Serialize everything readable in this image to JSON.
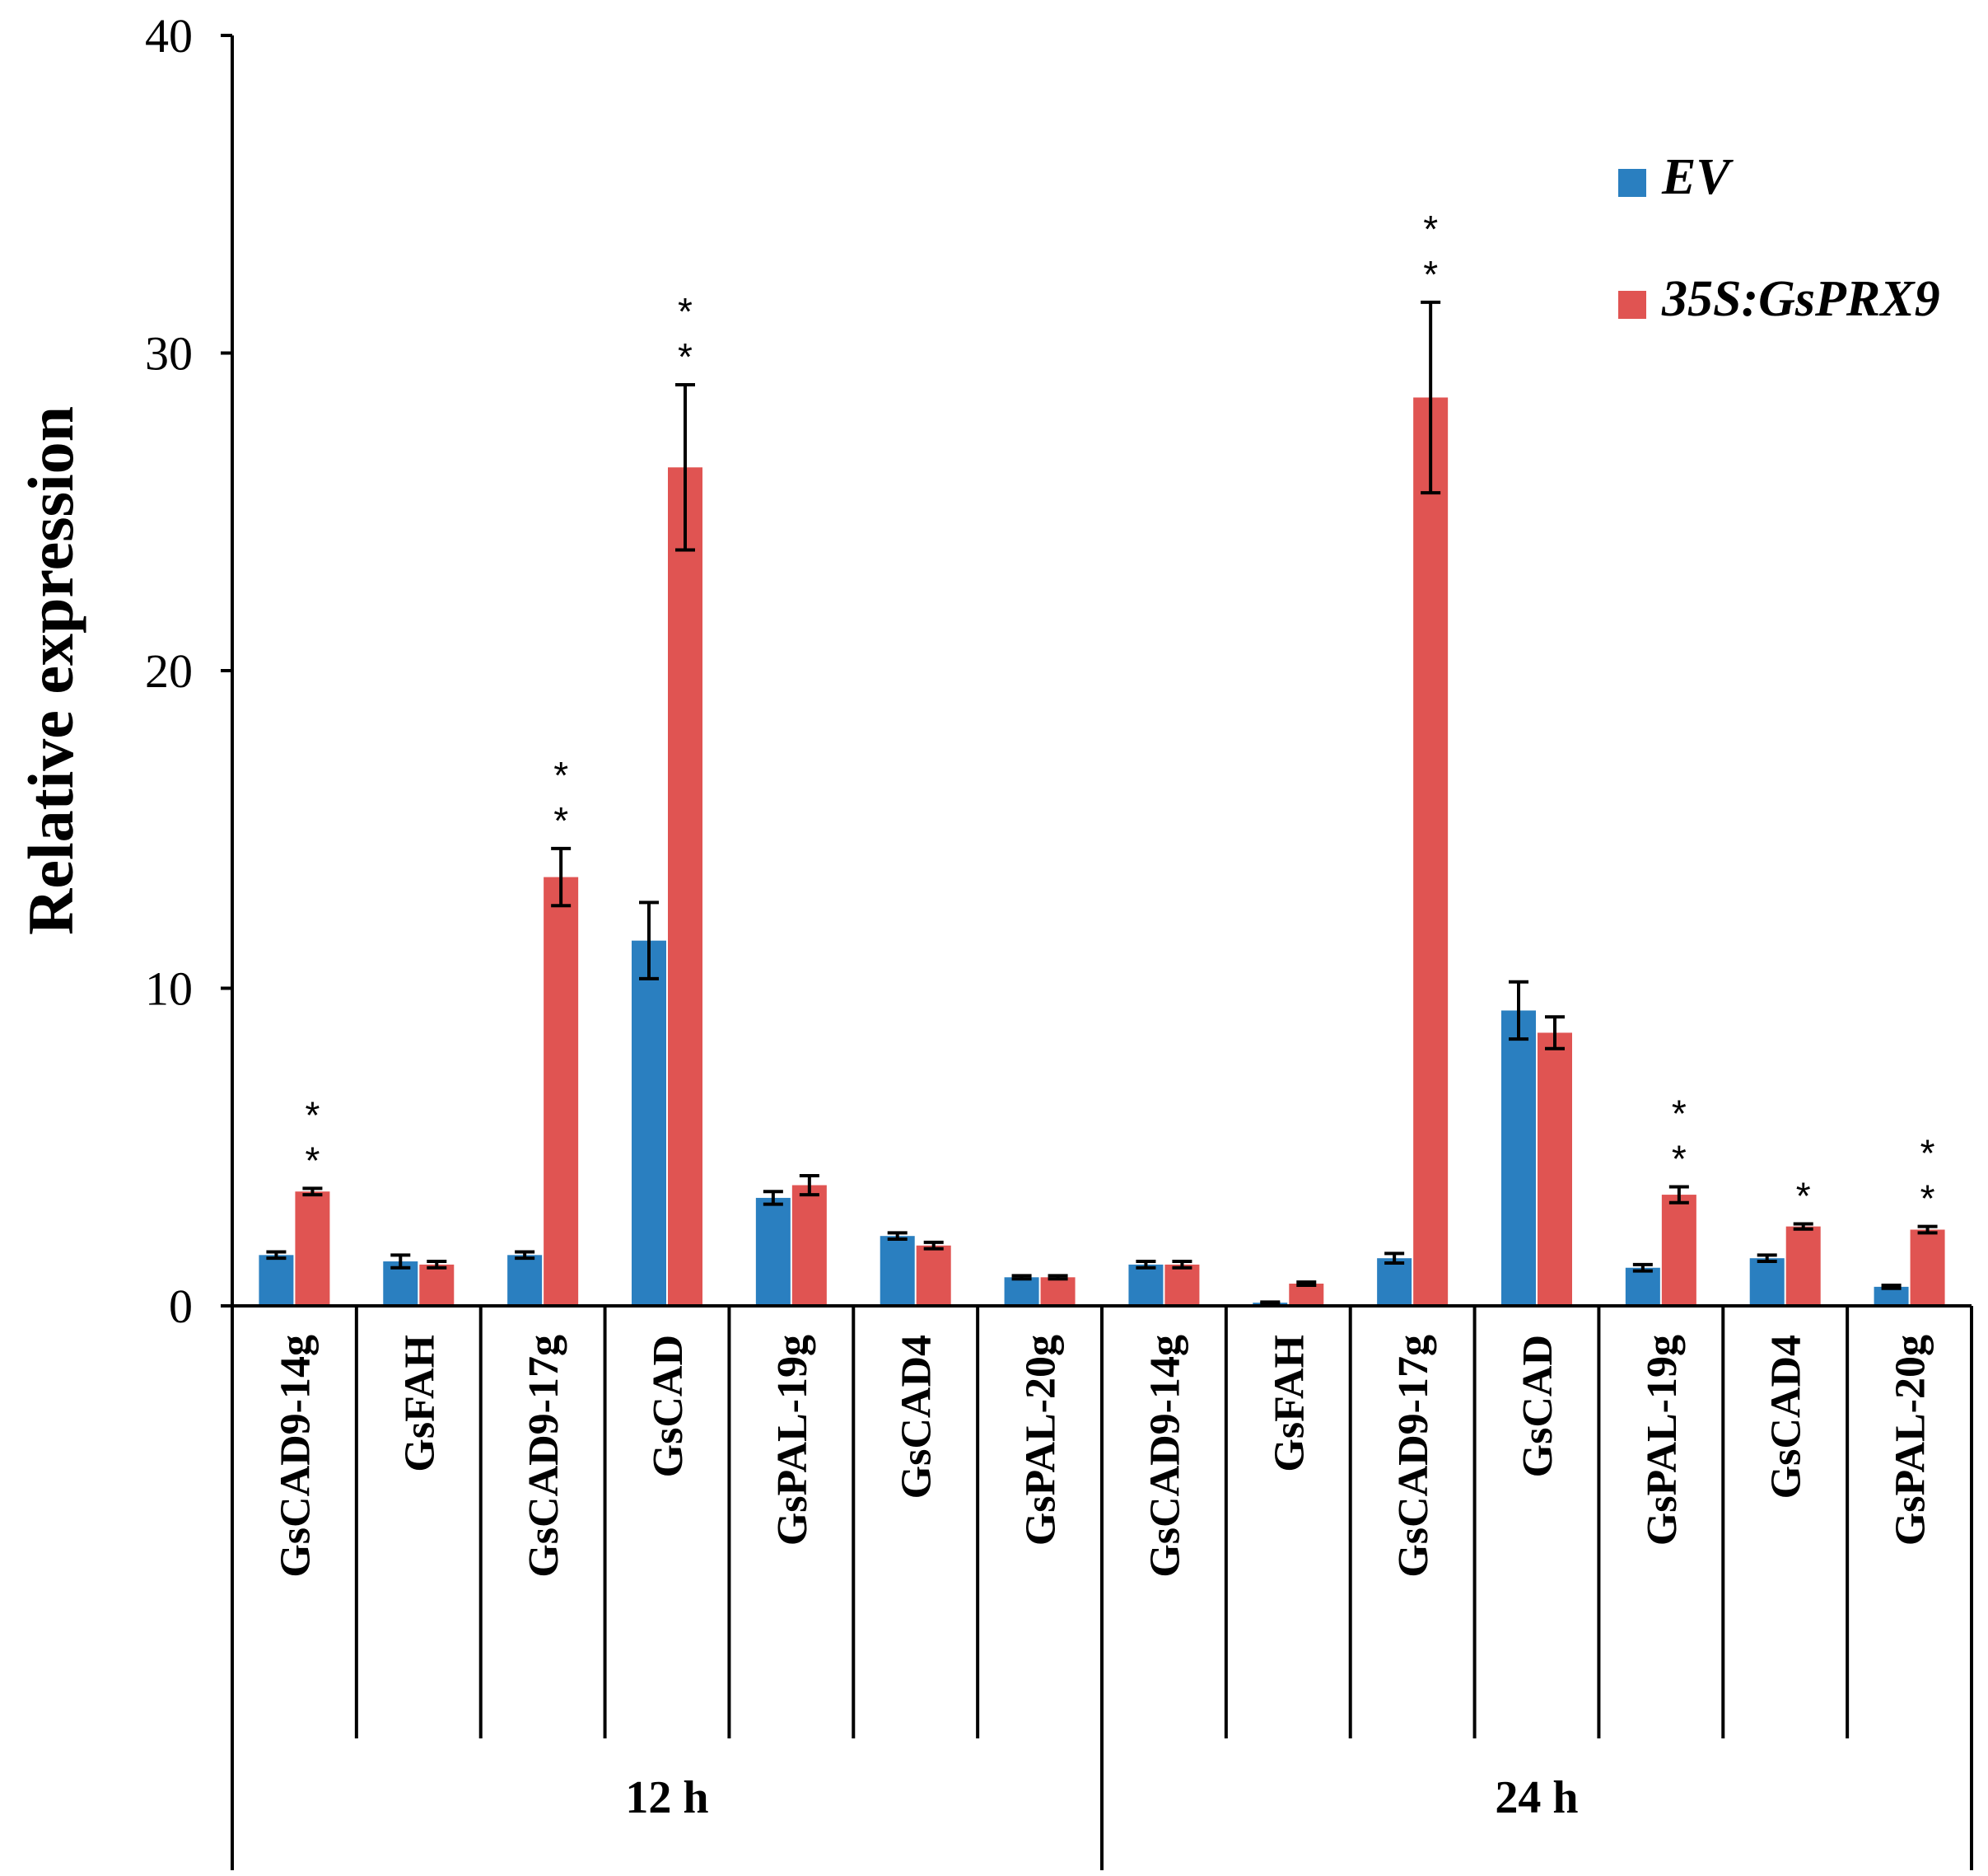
{
  "chart_data": {
    "type": "bar",
    "title": "",
    "xlabel": "",
    "ylabel": "Relative expression",
    "ylim": [
      0,
      40
    ],
    "yticks": [
      "0",
      "10",
      "20",
      "30",
      "40"
    ],
    "groups": [
      {
        "label": "12 h",
        "categories": [
          "GsCAD9-14g",
          "GsFAH",
          "GsCAD9-17g",
          "GsCAD",
          "GsPAL-19g",
          "GsCAD4",
          "GsPAL-20g"
        ]
      },
      {
        "label": "24 h",
        "categories": [
          "GsCAD9-14g",
          "GsFAH",
          "GsCAD9-17g",
          "GsCAD",
          "GsPAL-19g",
          "GsCAD4",
          "GsPAL-20g"
        ]
      }
    ],
    "categories": [
      "GsCAD9-14g",
      "GsFAH",
      "GsCAD9-17g",
      "GsCAD",
      "GsPAL-19g",
      "GsCAD4",
      "GsPAL-20g",
      "GsCAD9-14g",
      "GsFAH",
      "GsCAD9-17g",
      "GsCAD",
      "GsPAL-19g",
      "GsCAD4",
      "GsPAL-20g"
    ],
    "series": [
      {
        "name": "EV",
        "color": "#2a7fc0",
        "values": [
          1.6,
          1.4,
          1.6,
          11.5,
          3.4,
          2.2,
          0.9,
          1.3,
          0.1,
          1.5,
          9.3,
          1.2,
          1.5,
          0.6
        ],
        "errors": [
          0.1,
          0.2,
          0.1,
          1.2,
          0.2,
          0.1,
          0.05,
          0.1,
          0.02,
          0.15,
          0.9,
          0.1,
          0.1,
          0.05
        ]
      },
      {
        "name": "35S:GsPRX9",
        "color": "#e05452",
        "values": [
          3.6,
          1.3,
          13.5,
          26.4,
          3.8,
          1.9,
          0.9,
          1.3,
          0.7,
          28.6,
          8.6,
          3.5,
          2.5,
          2.4
        ],
        "errors": [
          0.1,
          0.1,
          0.9,
          2.6,
          0.3,
          0.1,
          0.05,
          0.1,
          0.05,
          3.0,
          0.5,
          0.25,
          0.08,
          0.1
        ]
      }
    ],
    "significance": [
      "**",
      "",
      "**",
      "**",
      "",
      "",
      "",
      "",
      "",
      "**",
      "",
      "**",
      "*",
      "**"
    ],
    "legend": {
      "position": "top-right",
      "entries": [
        "EV",
        "35S:GsPRX9"
      ]
    },
    "grid": false
  }
}
